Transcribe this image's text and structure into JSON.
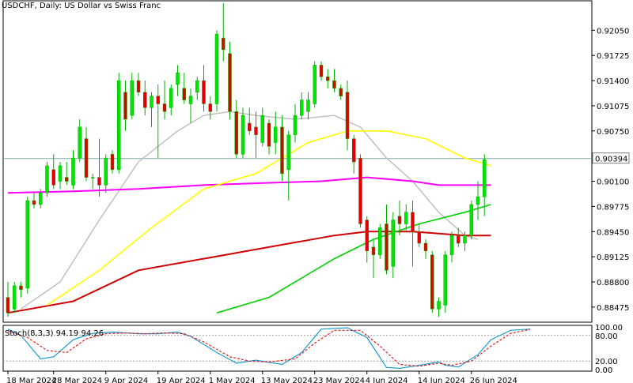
{
  "chart_data": {
    "type": "candlestick",
    "title": "USDCHF, Daily:  US Dollar vs Swiss Franc",
    "colors": {
      "bull": "#00e600",
      "bear": "#e00000",
      "ma_short": "#bcbcbc",
      "ma_mid": "#ffff00",
      "ma_long": "#00d000",
      "ma_200": "#d00000",
      "ma_purple": "#ff00ff",
      "bid_line": "#7fa7a7"
    },
    "y_ticks": [
      "0.92050",
      "0.91725",
      "0.91400",
      "0.91075",
      "0.90750",
      "0.90100",
      "0.89775",
      "0.89450",
      "0.89125",
      "0.88800",
      "0.88475"
    ],
    "ylim": [
      0.8828,
      0.924
    ],
    "current_price": "0.90394",
    "x_ticks": [
      {
        "label": "18 Mar 2024",
        "i": 0
      },
      {
        "label": "28 Mar 2024",
        "i": 7
      },
      {
        "label": "9 Apr 2024",
        "i": 15
      },
      {
        "label": "19 Apr 2024",
        "i": 23
      },
      {
        "label": "1 May 2024",
        "i": 31
      },
      {
        "label": "13 May 2024",
        "i": 39
      },
      {
        "label": "23 May 2024",
        "i": 47
      },
      {
        "label": "4 Jun 2024",
        "i": 55
      },
      {
        "label": "14 Jun 2024",
        "i": 63
      },
      {
        "label": "26 Jun 2024",
        "i": 71
      }
    ],
    "candles": [
      [
        0.886,
        0.888,
        0.8835,
        0.884
      ],
      [
        0.8845,
        0.888,
        0.884,
        0.8875
      ],
      [
        0.8875,
        0.888,
        0.886,
        0.887
      ],
      [
        0.8872,
        0.899,
        0.8865,
        0.8985
      ],
      [
        0.8985,
        0.8995,
        0.8975,
        0.898
      ],
      [
        0.898,
        0.9,
        0.8975,
        0.8995
      ],
      [
        0.8995,
        0.9035,
        0.899,
        0.903
      ],
      [
        0.9025,
        0.9045,
        0.9,
        0.9005
      ],
      [
        0.901,
        0.9035,
        0.9,
        0.903
      ],
      [
        0.9015,
        0.9035,
        0.9005,
        0.901
      ],
      [
        0.9005,
        0.905,
        0.9,
        0.904
      ],
      [
        0.904,
        0.909,
        0.9035,
        0.908
      ],
      [
        0.9065,
        0.908,
        0.901,
        0.9015
      ],
      [
        0.9015,
        0.902,
        0.9,
        0.9015
      ],
      [
        0.9015,
        0.9065,
        0.899,
        0.9005
      ],
      [
        0.9005,
        0.9045,
        0.8995,
        0.904
      ],
      [
        0.9045,
        0.905,
        0.902,
        0.9025
      ],
      [
        0.9025,
        0.915,
        0.902,
        0.914
      ],
      [
        0.9125,
        0.914,
        0.9075,
        0.909
      ],
      [
        0.9095,
        0.915,
        0.909,
        0.914
      ],
      [
        0.914,
        0.915,
        0.912,
        0.9125
      ],
      [
        0.9125,
        0.914,
        0.9095,
        0.9105
      ],
      [
        0.9105,
        0.9125,
        0.908,
        0.912
      ],
      [
        0.912,
        0.9135,
        0.904,
        0.911
      ],
      [
        0.911,
        0.914,
        0.909,
        0.91
      ],
      [
        0.9105,
        0.9135,
        0.9095,
        0.913
      ],
      [
        0.9135,
        0.916,
        0.912,
        0.915
      ],
      [
        0.913,
        0.915,
        0.911,
        0.9115
      ],
      [
        0.911,
        0.913,
        0.9085,
        0.912
      ],
      [
        0.9125,
        0.9145,
        0.9115,
        0.914
      ],
      [
        0.914,
        0.916,
        0.91,
        0.911
      ],
      [
        0.911,
        0.912,
        0.909,
        0.91
      ],
      [
        0.911,
        0.9205,
        0.91,
        0.92
      ],
      [
        0.9195,
        0.924,
        0.9165,
        0.918
      ],
      [
        0.9175,
        0.919,
        0.909,
        0.91
      ],
      [
        0.91,
        0.9115,
        0.904,
        0.9045
      ],
      [
        0.9045,
        0.9105,
        0.904,
        0.9095
      ],
      [
        0.9085,
        0.9105,
        0.907,
        0.9075
      ],
      [
        0.908,
        0.91,
        0.904,
        0.907
      ],
      [
        0.906,
        0.9105,
        0.9055,
        0.9095
      ],
      [
        0.9085,
        0.909,
        0.9045,
        0.9055
      ],
      [
        0.906,
        0.91,
        0.9045,
        0.908
      ],
      [
        0.908,
        0.9095,
        0.901,
        0.902
      ],
      [
        0.9025,
        0.9075,
        0.8985,
        0.907
      ],
      [
        0.907,
        0.911,
        0.906,
        0.9095
      ],
      [
        0.9095,
        0.9125,
        0.909,
        0.9115
      ],
      [
        0.91,
        0.9125,
        0.909,
        0.9115
      ],
      [
        0.911,
        0.9165,
        0.9105,
        0.916
      ],
      [
        0.916,
        0.9165,
        0.914,
        0.9145
      ],
      [
        0.9145,
        0.9155,
        0.913,
        0.914
      ],
      [
        0.914,
        0.9155,
        0.9125,
        0.913
      ],
      [
        0.913,
        0.9135,
        0.9115,
        0.912
      ],
      [
        0.9125,
        0.914,
        0.905,
        0.9065
      ],
      [
        0.9065,
        0.907,
        0.902,
        0.9035
      ],
      [
        0.904,
        0.9045,
        0.895,
        0.8955
      ],
      [
        0.896,
        0.8965,
        0.8905,
        0.892
      ],
      [
        0.8925,
        0.8935,
        0.8885,
        0.8915
      ],
      [
        0.8915,
        0.8955,
        0.891,
        0.895
      ],
      [
        0.8955,
        0.898,
        0.889,
        0.8895
      ],
      [
        0.89,
        0.897,
        0.8885,
        0.896
      ],
      [
        0.8965,
        0.8985,
        0.894,
        0.8955
      ],
      [
        0.8955,
        0.898,
        0.8945,
        0.897
      ],
      [
        0.897,
        0.8985,
        0.89,
        0.8945
      ],
      [
        0.8945,
        0.8955,
        0.8925,
        0.893
      ],
      [
        0.893,
        0.8935,
        0.891,
        0.892
      ],
      [
        0.8915,
        0.892,
        0.884,
        0.8845
      ],
      [
        0.8845,
        0.886,
        0.8835,
        0.8855
      ],
      [
        0.885,
        0.892,
        0.884,
        0.8915
      ],
      [
        0.8915,
        0.8945,
        0.8905,
        0.894
      ],
      [
        0.894,
        0.895,
        0.8925,
        0.893
      ],
      [
        0.893,
        0.8945,
        0.892,
        0.894
      ],
      [
        0.894,
        0.8985,
        0.8935,
        0.898
      ],
      [
        0.898,
        0.901,
        0.896,
        0.899
      ],
      [
        0.899,
        0.9045,
        0.8965,
        0.9038
      ]
    ],
    "ma_200_values": [
      [
        0,
        0.884
      ],
      [
        10,
        0.8855
      ],
      [
        20,
        0.8895
      ],
      [
        30,
        0.891
      ],
      [
        40,
        0.8925
      ],
      [
        50,
        0.894
      ],
      [
        55,
        0.8945
      ],
      [
        62,
        0.8945
      ],
      [
        70,
        0.894
      ],
      [
        74,
        0.894
      ]
    ],
    "ma_long_values": [
      [
        32,
        0.884
      ],
      [
        40,
        0.886
      ],
      [
        50,
        0.891
      ],
      [
        56,
        0.8935
      ],
      [
        63,
        0.8955
      ],
      [
        70,
        0.897
      ],
      [
        74,
        0.898
      ]
    ],
    "ma_mid_values": [
      [
        6,
        0.885
      ],
      [
        14,
        0.8895
      ],
      [
        22,
        0.895
      ],
      [
        30,
        0.9
      ],
      [
        38,
        0.902
      ],
      [
        46,
        0.906
      ],
      [
        52,
        0.9075
      ],
      [
        58,
        0.9075
      ],
      [
        64,
        0.9065
      ],
      [
        70,
        0.904
      ],
      [
        74,
        0.903
      ]
    ],
    "ma_short_values": [
      [
        2,
        0.8845
      ],
      [
        8,
        0.888
      ],
      [
        14,
        0.896
      ],
      [
        20,
        0.9035
      ],
      [
        26,
        0.9075
      ],
      [
        30,
        0.9095
      ],
      [
        34,
        0.91
      ],
      [
        38,
        0.9095
      ],
      [
        44,
        0.909
      ],
      [
        50,
        0.9095
      ],
      [
        54,
        0.908
      ],
      [
        58,
        0.904
      ],
      [
        62,
        0.901
      ],
      [
        66,
        0.897
      ],
      [
        70,
        0.894
      ],
      [
        72,
        0.8935
      ]
    ],
    "ma_purple_values": [
      [
        0,
        0.8995
      ],
      [
        10,
        0.8997
      ],
      [
        20,
        0.9
      ],
      [
        30,
        0.9005
      ],
      [
        40,
        0.9008
      ],
      [
        48,
        0.901
      ],
      [
        55,
        0.9015
      ],
      [
        62,
        0.901
      ],
      [
        66,
        0.9005
      ],
      [
        70,
        0.9005
      ],
      [
        74,
        0.9005
      ]
    ],
    "stoch": {
      "label": "Stoch(8,3,3) 94.19 94.26",
      "y_ticks": [
        "100.00",
        "80.00",
        "20.00",
        "0.00"
      ],
      "main": [
        [
          0,
          95
        ],
        [
          2,
          80
        ],
        [
          5,
          25
        ],
        [
          7,
          30
        ],
        [
          10,
          70
        ],
        [
          13,
          85
        ],
        [
          16,
          88
        ],
        [
          20,
          84
        ],
        [
          23,
          84
        ],
        [
          26,
          88
        ],
        [
          28,
          78
        ],
        [
          32,
          40
        ],
        [
          35,
          15
        ],
        [
          38,
          22
        ],
        [
          42,
          12
        ],
        [
          45,
          40
        ],
        [
          48,
          95
        ],
        [
          52,
          98
        ],
        [
          55,
          75
        ],
        [
          58,
          5
        ],
        [
          60,
          3
        ],
        [
          63,
          10
        ],
        [
          66,
          18
        ],
        [
          67,
          10
        ],
        [
          69,
          6
        ],
        [
          72,
          35
        ],
        [
          74,
          70
        ],
        [
          77,
          92
        ],
        [
          80,
          95
        ]
      ],
      "signal": [
        [
          0,
          90
        ],
        [
          3,
          75
        ],
        [
          6,
          45
        ],
        [
          9,
          40
        ],
        [
          12,
          72
        ],
        [
          15,
          84
        ],
        [
          18,
          86
        ],
        [
          21,
          84
        ],
        [
          24,
          86
        ],
        [
          27,
          84
        ],
        [
          30,
          65
        ],
        [
          34,
          30
        ],
        [
          37,
          20
        ],
        [
          40,
          18
        ],
        [
          44,
          25
        ],
        [
          47,
          62
        ],
        [
          50,
          92
        ],
        [
          54,
          92
        ],
        [
          57,
          55
        ],
        [
          60,
          12
        ],
        [
          63,
          8
        ],
        [
          66,
          15
        ],
        [
          68,
          10
        ],
        [
          71,
          20
        ],
        [
          74,
          55
        ],
        [
          77,
          85
        ],
        [
          80,
          94
        ]
      ]
    }
  }
}
